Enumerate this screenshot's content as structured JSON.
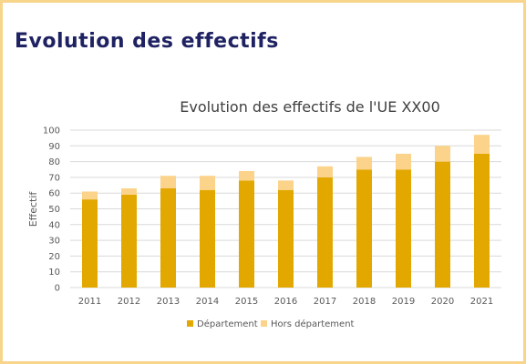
{
  "slide": {
    "title": "Evolution des effectifs"
  },
  "colors": {
    "frame_border": "#f7d58a",
    "title_text": "#1f2262",
    "series_departement": "#e2a800",
    "series_hors_departement": "#fbd38a"
  },
  "chart_data": {
    "type": "bar",
    "stacked": true,
    "title": "Evolution des effectifs de l'UE XX00",
    "xlabel": "",
    "ylabel": "Effectif",
    "ylim": [
      0,
      100
    ],
    "yticks": [
      0,
      10,
      20,
      30,
      40,
      50,
      60,
      70,
      80,
      90,
      100
    ],
    "grid": true,
    "legend_position": "bottom",
    "categories": [
      "2011",
      "2012",
      "2013",
      "2014",
      "2015",
      "2016",
      "2017",
      "2018",
      "2019",
      "2020",
      "2021"
    ],
    "series": [
      {
        "name": "Département",
        "color": "#e2a800",
        "values": [
          56,
          59,
          63,
          62,
          68,
          62,
          70,
          75,
          75,
          80,
          85
        ]
      },
      {
        "name": "Hors département",
        "color": "#fbd38a",
        "values": [
          5,
          4,
          8,
          9,
          6,
          6,
          7,
          8,
          10,
          10,
          12
        ]
      }
    ]
  }
}
